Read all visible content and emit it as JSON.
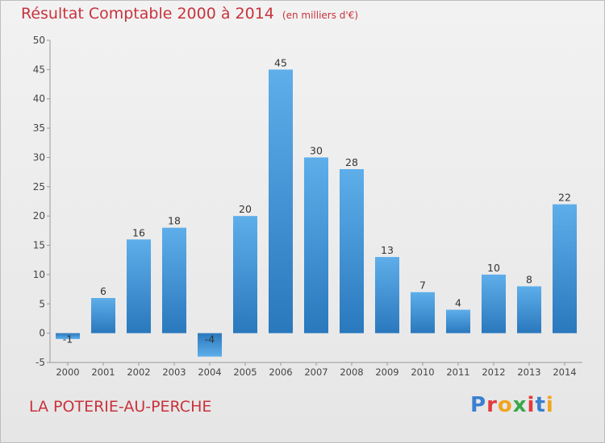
{
  "header": {
    "title": "Résultat Comptable 2000 à 2014",
    "subtitle": "(en milliers d'€)"
  },
  "footer": {
    "town": "LA POTERIE-AU-PERCHE",
    "logo_text": "Proxiti"
  },
  "colors": {
    "bar_light": "#5eaeea",
    "bar_dark": "#2a78bd",
    "title": "#c8333c"
  },
  "chart_data": {
    "type": "bar",
    "title": "Résultat Comptable 2000 à 2014",
    "subtitle": "(en milliers d'€)",
    "xlabel": "",
    "ylabel": "",
    "categories": [
      "2000",
      "2001",
      "2002",
      "2003",
      "2004",
      "2005",
      "2006",
      "2007",
      "2008",
      "2009",
      "2010",
      "2011",
      "2012",
      "2013",
      "2014"
    ],
    "values": [
      -1,
      6,
      16,
      18,
      -4,
      20,
      45,
      30,
      28,
      13,
      7,
      4,
      10,
      8,
      22
    ],
    "data_labels": [
      "-1",
      "6",
      "16",
      "18",
      "-4",
      "20",
      "45",
      "30",
      "28",
      "13",
      "7",
      "4",
      "10",
      "8",
      "22"
    ],
    "ylim": [
      -5,
      50
    ],
    "yticks": [
      -5,
      0,
      5,
      10,
      15,
      20,
      25,
      30,
      35,
      40,
      45,
      50
    ],
    "grid": false
  }
}
